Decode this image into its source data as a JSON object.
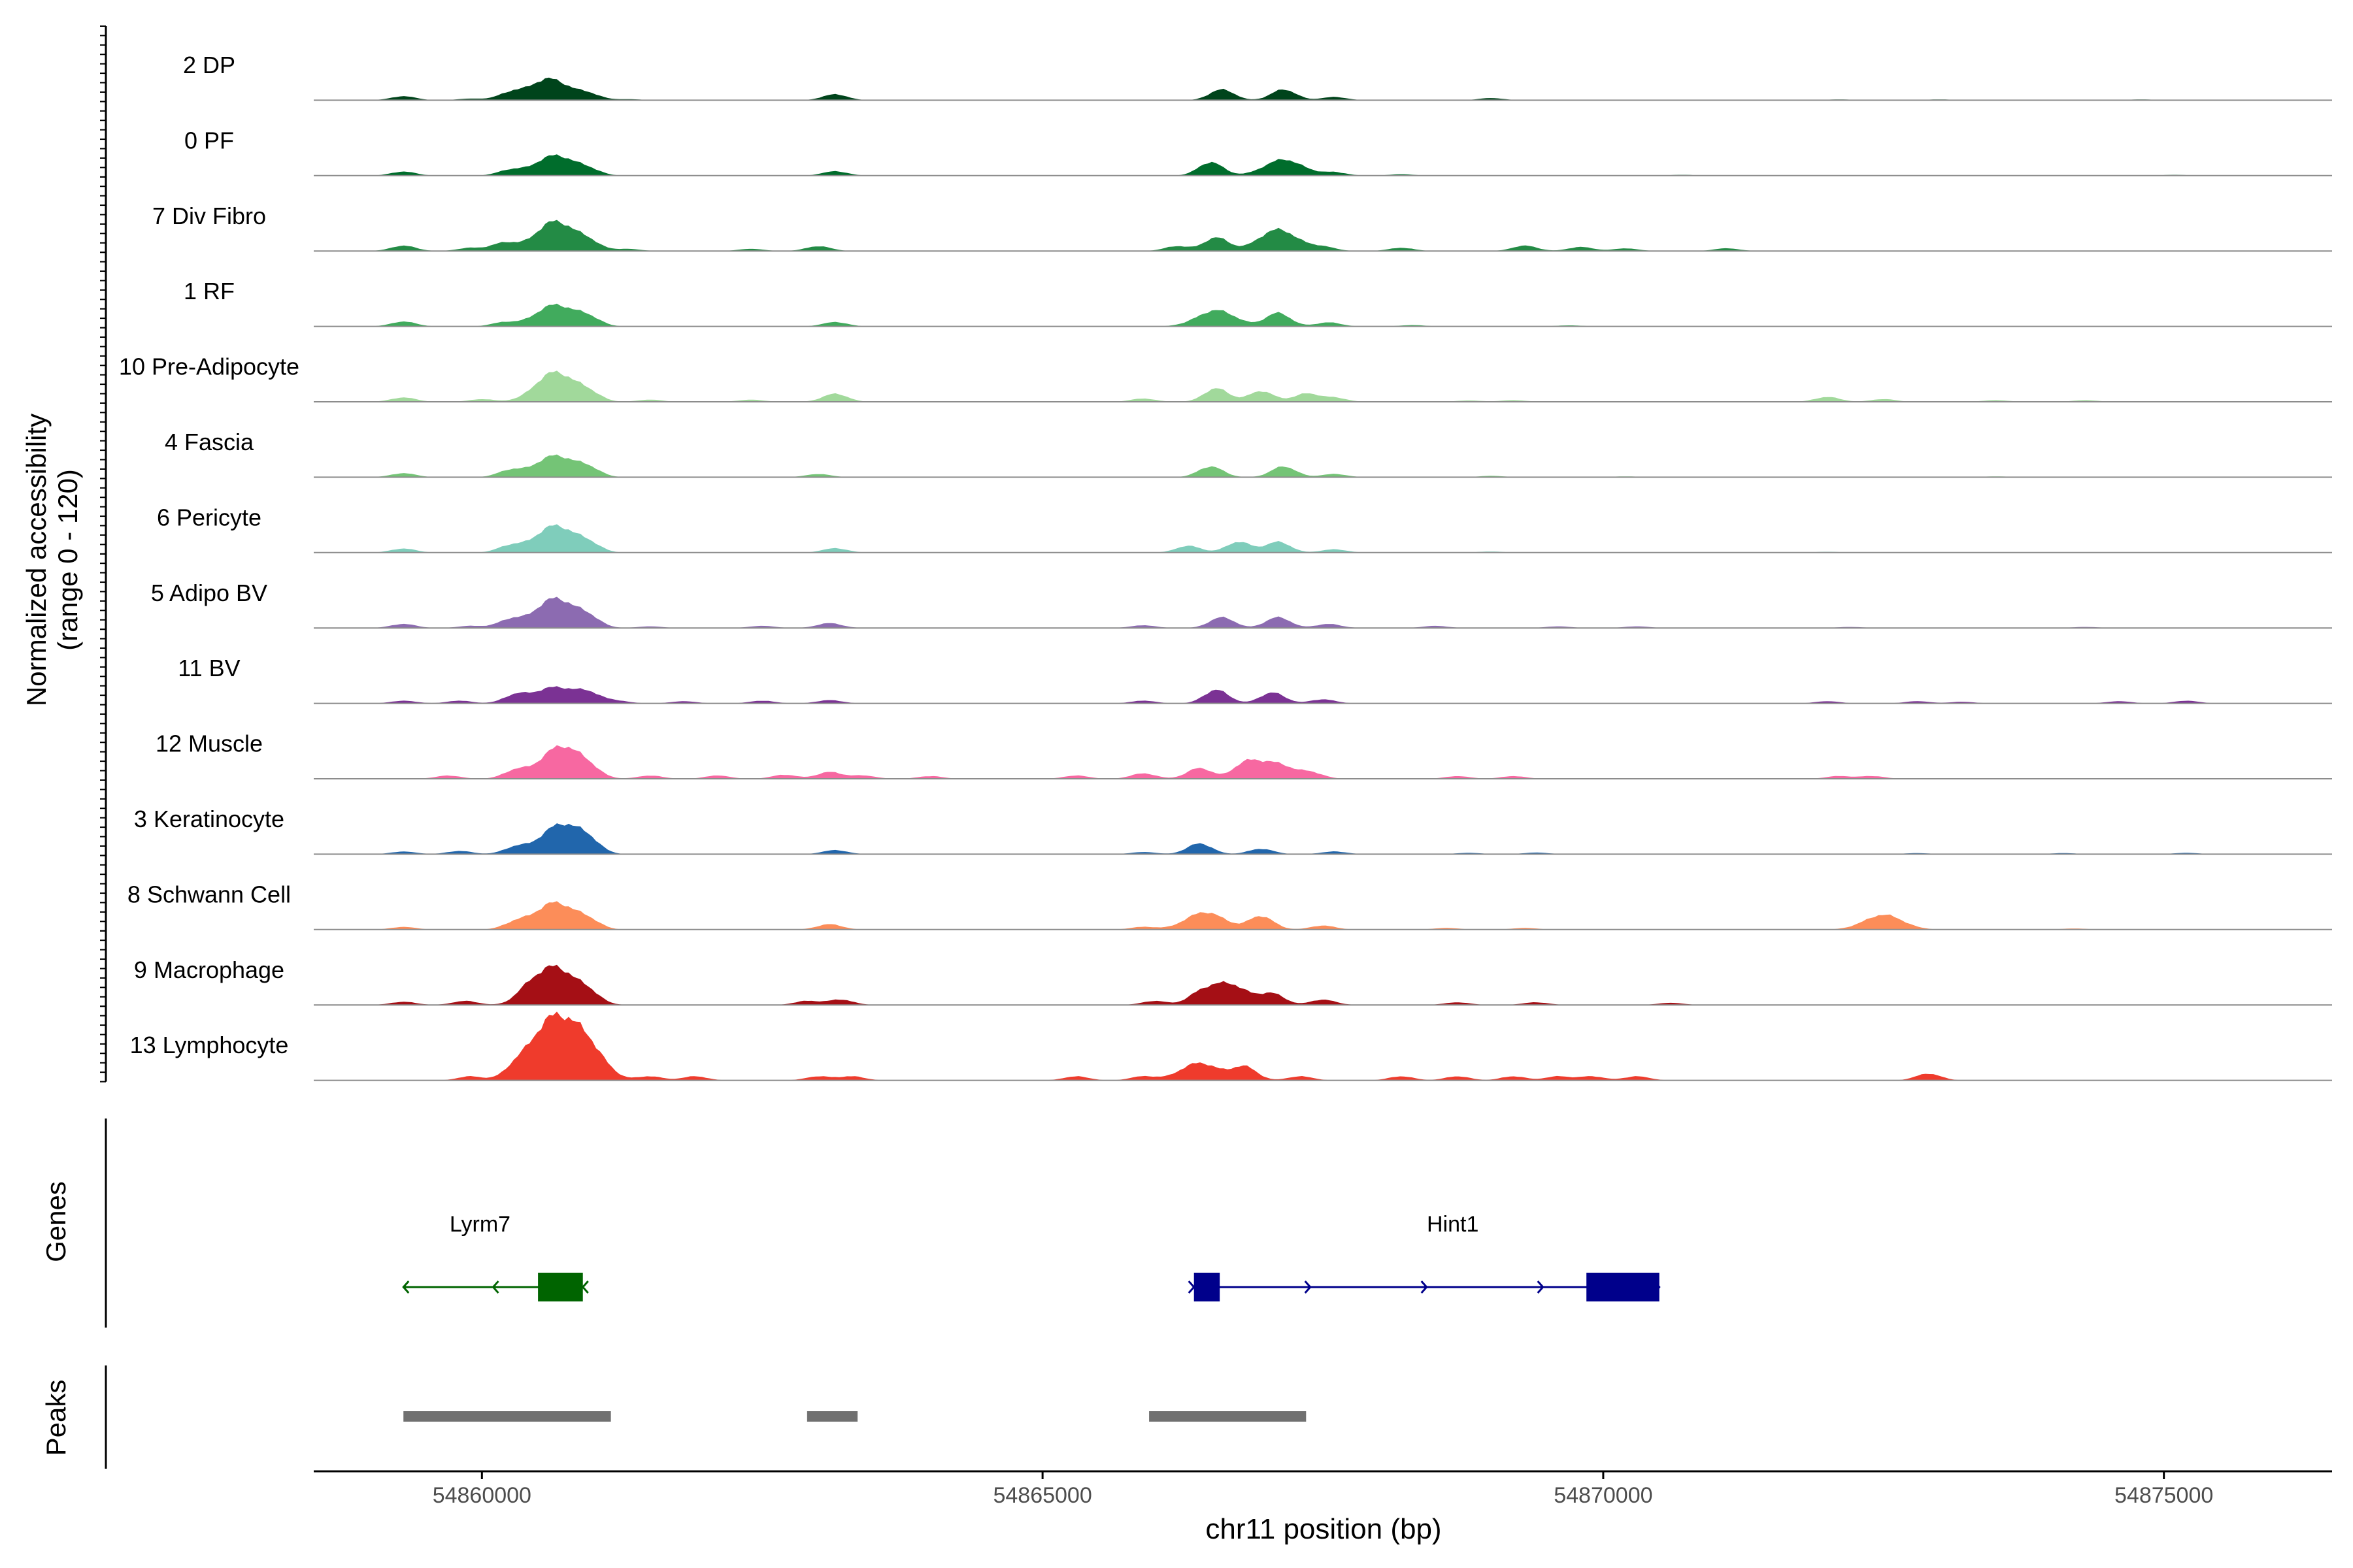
{
  "chart_data": {
    "type": "area",
    "title": "",
    "ylabel_line1": "Normalized accessibility",
    "ylabel_line2": "(range 0 - 120)",
    "xlabel": "chr11 position (bp)",
    "xlim": [
      54858500,
      54876500
    ],
    "ylim": [
      0,
      120
    ],
    "x_ticks": [
      54860000,
      54865000,
      54870000,
      54875000
    ],
    "x_tick_labels": [
      "54860000",
      "54865000",
      "54870000",
      "54875000"
    ],
    "genes_label": "Genes",
    "peaks_label": "Peaks",
    "tracks": [
      {
        "name": "2 DP",
        "color": "#00441b",
        "peaks": [
          [
            54859300,
            1.5
          ],
          [
            54859900,
            0.6
          ],
          [
            54860250,
            2.5
          ],
          [
            54860600,
            8.0
          ],
          [
            54860950,
            2.2
          ],
          [
            54861300,
            0.4
          ],
          [
            54863150,
            2.2
          ],
          [
            54866600,
            4.0
          ],
          [
            54867150,
            4.0
          ],
          [
            54867600,
            1.2
          ],
          [
            54869000,
            0.8
          ],
          [
            54872100,
            0.3
          ],
          [
            54873000,
            0.3
          ],
          [
            54874800,
            0.3
          ]
        ]
      },
      {
        "name": "0 PF",
        "color": "#006d2c",
        "peaks": [
          [
            54859300,
            1.5
          ],
          [
            54860250,
            2.0
          ],
          [
            54860650,
            7.5
          ],
          [
            54860950,
            2.0
          ],
          [
            54863150,
            1.6
          ],
          [
            54866500,
            5.0
          ],
          [
            54867150,
            6.0
          ],
          [
            54867600,
            1.2
          ],
          [
            54868200,
            0.5
          ],
          [
            54870700,
            0.3
          ],
          [
            54875100,
            0.3
          ]
        ]
      },
      {
        "name": "7 Div Fibro",
        "color": "#238b45",
        "peaks": [
          [
            54859300,
            2.0
          ],
          [
            54859900,
            1.2
          ],
          [
            54860200,
            3.0
          ],
          [
            54860650,
            11.0
          ],
          [
            54860950,
            3.0
          ],
          [
            54861300,
            0.8
          ],
          [
            54862400,
            0.8
          ],
          [
            54863000,
            1.8
          ],
          [
            54866200,
            1.8
          ],
          [
            54866550,
            5.0
          ],
          [
            54867100,
            8.0
          ],
          [
            54867500,
            1.5
          ],
          [
            54868200,
            1.2
          ],
          [
            54869300,
            2.0
          ],
          [
            54869800,
            1.5
          ],
          [
            54870200,
            1.0
          ],
          [
            54871100,
            1.0
          ]
        ]
      },
      {
        "name": "1 RF",
        "color": "#41ab5d",
        "peaks": [
          [
            54859300,
            1.8
          ],
          [
            54860200,
            1.5
          ],
          [
            54860650,
            8.0
          ],
          [
            54860950,
            3.0
          ],
          [
            54863150,
            1.6
          ],
          [
            54866550,
            6.0
          ],
          [
            54867100,
            5.0
          ],
          [
            54867550,
            1.5
          ],
          [
            54868300,
            0.5
          ],
          [
            54869700,
            0.4
          ]
        ]
      },
      {
        "name": "10 Pre-Adipocyte",
        "color": "#a1d99b",
        "peaks": [
          [
            54859300,
            1.6
          ],
          [
            54860000,
            1.0
          ],
          [
            54860650,
            11.0
          ],
          [
            54860950,
            3.0
          ],
          [
            54861500,
            0.8
          ],
          [
            54862400,
            0.8
          ],
          [
            54863150,
            3.0
          ],
          [
            54865900,
            1.2
          ],
          [
            54866550,
            5.0
          ],
          [
            54866950,
            4.0
          ],
          [
            54867350,
            3.0
          ],
          [
            54867600,
            1.5
          ],
          [
            54868800,
            0.5
          ],
          [
            54869200,
            0.6
          ],
          [
            54872000,
            1.8
          ],
          [
            54872500,
            1.0
          ],
          [
            54873500,
            0.6
          ],
          [
            54874300,
            0.6
          ]
        ]
      },
      {
        "name": "4 Fascia",
        "color": "#74c476",
        "peaks": [
          [
            54859300,
            1.5
          ],
          [
            54860250,
            2.5
          ],
          [
            54860650,
            8.0
          ],
          [
            54860950,
            3.0
          ],
          [
            54863000,
            1.2
          ],
          [
            54866500,
            4.0
          ],
          [
            54867150,
            4.0
          ],
          [
            54867600,
            1.2
          ],
          [
            54869000,
            0.5
          ],
          [
            54870200,
            0.3
          ],
          [
            54873500,
            0.3
          ]
        ]
      },
      {
        "name": "6 Pericyte",
        "color": "#7fcdbb",
        "peaks": [
          [
            54859300,
            1.5
          ],
          [
            54860250,
            2.5
          ],
          [
            54860650,
            10.0
          ],
          [
            54860950,
            3.0
          ],
          [
            54863150,
            1.6
          ],
          [
            54866300,
            2.5
          ],
          [
            54866750,
            4.0
          ],
          [
            54867100,
            4.0
          ],
          [
            54867600,
            1.2
          ],
          [
            54869000,
            0.4
          ],
          [
            54872000,
            0.3
          ]
        ]
      },
      {
        "name": "5 Adipo BV",
        "color": "#8c6bb1",
        "peaks": [
          [
            54859300,
            1.5
          ],
          [
            54859900,
            0.8
          ],
          [
            54860250,
            3.0
          ],
          [
            54860650,
            11.0
          ],
          [
            54860950,
            3.5
          ],
          [
            54861500,
            0.6
          ],
          [
            54862500,
            0.8
          ],
          [
            54863100,
            1.8
          ],
          [
            54865900,
            1.0
          ],
          [
            54866600,
            4.0
          ],
          [
            54867100,
            4.0
          ],
          [
            54867550,
            1.5
          ],
          [
            54868500,
            0.8
          ],
          [
            54869600,
            0.6
          ],
          [
            54870300,
            0.6
          ],
          [
            54872200,
            0.4
          ],
          [
            54874300,
            0.4
          ]
        ]
      },
      {
        "name": "11 BV",
        "color": "#7b3294",
        "peaks": [
          [
            54859300,
            1.0
          ],
          [
            54859800,
            1.0
          ],
          [
            54860300,
            3.0
          ],
          [
            54860650,
            6.0
          ],
          [
            54860950,
            3.5
          ],
          [
            54861200,
            1.0
          ],
          [
            54861800,
            0.8
          ],
          [
            54862500,
            1.0
          ],
          [
            54863100,
            1.2
          ],
          [
            54865900,
            1.0
          ],
          [
            54866550,
            5.0
          ],
          [
            54867050,
            4.0
          ],
          [
            54867500,
            1.5
          ],
          [
            54872000,
            0.8
          ],
          [
            54872800,
            0.8
          ],
          [
            54873200,
            0.6
          ],
          [
            54874600,
            0.8
          ],
          [
            54875200,
            1.0
          ]
        ]
      },
      {
        "name": "12 Muscle",
        "color": "#f768a1",
        "peaks": [
          [
            54859700,
            1.2
          ],
          [
            54860300,
            3.0
          ],
          [
            54860700,
            12.0
          ],
          [
            54860950,
            3.0
          ],
          [
            54861500,
            1.2
          ],
          [
            54862100,
            1.2
          ],
          [
            54862700,
            1.5
          ],
          [
            54863100,
            2.5
          ],
          [
            54863400,
            1.2
          ],
          [
            54864000,
            1.0
          ],
          [
            54865300,
            1.2
          ],
          [
            54865900,
            2.0
          ],
          [
            54866400,
            4.0
          ],
          [
            54866800,
            4.5
          ],
          [
            54867050,
            6.0
          ],
          [
            54867400,
            2.0
          ],
          [
            54868700,
            1.0
          ],
          [
            54869200,
            1.0
          ],
          [
            54872100,
            1.0
          ],
          [
            54872400,
            1.0
          ]
        ]
      },
      {
        "name": "3 Keratinocyte",
        "color": "#2166ac",
        "peaks": [
          [
            54859300,
            1.0
          ],
          [
            54859800,
            1.2
          ],
          [
            54860300,
            2.5
          ],
          [
            54860700,
            11.0
          ],
          [
            54860950,
            4.0
          ],
          [
            54863150,
            1.5
          ],
          [
            54865900,
            0.8
          ],
          [
            54866400,
            4.0
          ],
          [
            54866950,
            2.0
          ],
          [
            54867600,
            1.0
          ],
          [
            54868800,
            0.5
          ],
          [
            54869400,
            0.6
          ],
          [
            54872800,
            0.4
          ],
          [
            54874100,
            0.4
          ],
          [
            54875200,
            0.5
          ]
        ]
      },
      {
        "name": "8 Schwann Cell",
        "color": "#fc8d59",
        "peaks": [
          [
            54859300,
            1.0
          ],
          [
            54860300,
            2.5
          ],
          [
            54860650,
            10.0
          ],
          [
            54860950,
            3.0
          ],
          [
            54863100,
            2.0
          ],
          [
            54865900,
            1.0
          ],
          [
            54866450,
            6.5
          ],
          [
            54866950,
            5.0
          ],
          [
            54867500,
            1.5
          ],
          [
            54868600,
            0.6
          ],
          [
            54869300,
            0.6
          ],
          [
            54872500,
            5.5
          ],
          [
            54874200,
            0.4
          ]
        ]
      },
      {
        "name": "9 Macrophage",
        "color": "#a50f15",
        "peaks": [
          [
            54859300,
            1.2
          ],
          [
            54859850,
            1.5
          ],
          [
            54860400,
            3.5
          ],
          [
            54860650,
            14.0
          ],
          [
            54860950,
            4.0
          ],
          [
            54862900,
            1.5
          ],
          [
            54863200,
            2.0
          ],
          [
            54866000,
            1.5
          ],
          [
            54866400,
            3.0
          ],
          [
            54866650,
            8.0
          ],
          [
            54867050,
            4.0
          ],
          [
            54867500,
            2.0
          ],
          [
            54868700,
            1.0
          ],
          [
            54869400,
            1.0
          ],
          [
            54870600,
            0.8
          ]
        ]
      },
      {
        "name": "13 Lymphocyte",
        "color": "#ef3b2c",
        "peaks": [
          [
            54859900,
            1.5
          ],
          [
            54860300,
            4.0
          ],
          [
            54860600,
            20.0
          ],
          [
            54860900,
            15.0
          ],
          [
            54861500,
            1.5
          ],
          [
            54861900,
            1.5
          ],
          [
            54863000,
            1.5
          ],
          [
            54863300,
            1.5
          ],
          [
            54865300,
            1.5
          ],
          [
            54865900,
            1.5
          ],
          [
            54866400,
            6.5
          ],
          [
            54866800,
            5.0
          ],
          [
            54867300,
            1.5
          ],
          [
            54868200,
            1.5
          ],
          [
            54868700,
            1.5
          ],
          [
            54869200,
            1.5
          ],
          [
            54869600,
            1.5
          ],
          [
            54869900,
            1.5
          ],
          [
            54870300,
            1.5
          ],
          [
            54872900,
            2.5
          ]
        ]
      }
    ],
    "genes": [
      {
        "name": "Lyrm7",
        "color": "#006400",
        "strand": "-",
        "start": 54859300,
        "end": 54860900,
        "exons": [
          [
            54860500,
            54860900
          ]
        ]
      },
      {
        "name": "Hint1",
        "color": "#00008b",
        "strand": "+",
        "start": 54866350,
        "end": 54870500,
        "exons": [
          [
            54866350,
            54866580
          ],
          [
            54869850,
            54870500
          ]
        ]
      }
    ],
    "peaks": [
      [
        54859300,
        54861150
      ],
      [
        54862900,
        54863350
      ],
      [
        54865950,
        54867350
      ]
    ]
  }
}
